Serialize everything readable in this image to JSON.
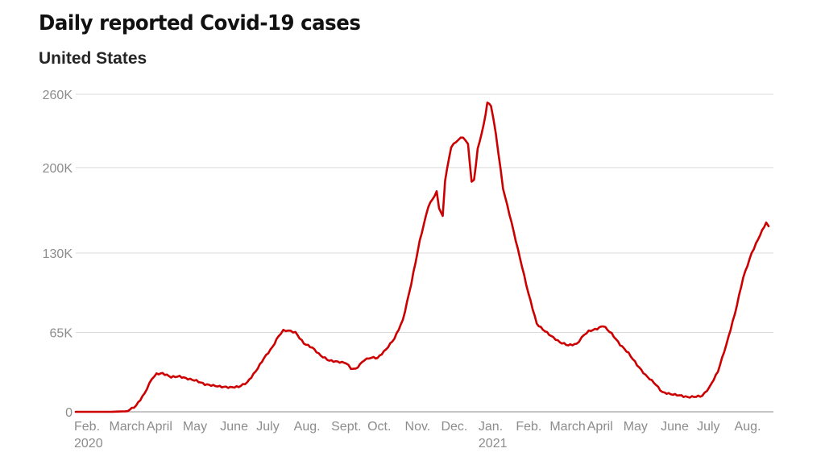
{
  "header": {
    "title": "Daily reported Covid-19 cases",
    "subtitle": "United States"
  },
  "colors": {
    "series": "#cc0000",
    "grid": "#d9d9d9",
    "tick_text": "#8c8c8c",
    "baseline": "#8c8c8c"
  },
  "chart_data": {
    "type": "line",
    "title": "Daily reported Covid-19 cases",
    "subtitle": "United States",
    "xlabel": "",
    "ylabel": "",
    "xlim": [
      "2020-02-01",
      "2021-09-01"
    ],
    "ylim": [
      0,
      260000
    ],
    "grid": true,
    "legend": "none",
    "y_ticks": [
      {
        "value": 0,
        "label": "0"
      },
      {
        "value": 65000,
        "label": "65K"
      },
      {
        "value": 130000,
        "label": "130K"
      },
      {
        "value": 200000,
        "label": "200K"
      },
      {
        "value": 260000,
        "label": "260K"
      }
    ],
    "x_ticks": [
      {
        "date": "2020-02-01",
        "label": "Feb.",
        "year": "2020"
      },
      {
        "date": "2020-03-01",
        "label": "March"
      },
      {
        "date": "2020-04-01",
        "label": "April"
      },
      {
        "date": "2020-05-01",
        "label": "May"
      },
      {
        "date": "2020-06-01",
        "label": "June"
      },
      {
        "date": "2020-07-01",
        "label": "July"
      },
      {
        "date": "2020-08-01",
        "label": "Aug."
      },
      {
        "date": "2020-09-01",
        "label": "Sept."
      },
      {
        "date": "2020-10-01",
        "label": "Oct."
      },
      {
        "date": "2020-11-01",
        "label": "Nov."
      },
      {
        "date": "2020-12-01",
        "label": "Dec."
      },
      {
        "date": "2021-01-01",
        "label": "Jan.",
        "year": "2021"
      },
      {
        "date": "2021-02-01",
        "label": "Feb."
      },
      {
        "date": "2021-03-01",
        "label": "March"
      },
      {
        "date": "2021-04-01",
        "label": "April"
      },
      {
        "date": "2021-05-01",
        "label": "May"
      },
      {
        "date": "2021-06-01",
        "label": "June"
      },
      {
        "date": "2021-07-01",
        "label": "July"
      },
      {
        "date": "2021-08-01",
        "label": "Aug."
      }
    ],
    "series": [
      {
        "color": "#cc0000",
        "points": [
          [
            "2020-02-01",
            0
          ],
          [
            "2020-03-01",
            0
          ],
          [
            "2020-03-15",
            500
          ],
          [
            "2020-03-22",
            5000
          ],
          [
            "2020-03-29",
            15000
          ],
          [
            "2020-04-04",
            27000
          ],
          [
            "2020-04-08",
            31000
          ],
          [
            "2020-04-13",
            31500
          ],
          [
            "2020-04-20",
            28500
          ],
          [
            "2020-04-27",
            29000
          ],
          [
            "2020-05-04",
            27000
          ],
          [
            "2020-05-11",
            25500
          ],
          [
            "2020-05-18",
            22500
          ],
          [
            "2020-05-25",
            21500
          ],
          [
            "2020-06-01",
            20500
          ],
          [
            "2020-06-08",
            20000
          ],
          [
            "2020-06-15",
            20500
          ],
          [
            "2020-06-22",
            24000
          ],
          [
            "2020-06-29",
            33000
          ],
          [
            "2020-07-06",
            44000
          ],
          [
            "2020-07-13",
            53000
          ],
          [
            "2020-07-18",
            62000
          ],
          [
            "2020-07-22",
            66500
          ],
          [
            "2020-07-26",
            66500
          ],
          [
            "2020-08-01",
            65000
          ],
          [
            "2020-08-08",
            56000
          ],
          [
            "2020-08-15",
            52500
          ],
          [
            "2020-08-22",
            46000
          ],
          [
            "2020-08-29",
            42000
          ],
          [
            "2020-09-05",
            41000
          ],
          [
            "2020-09-12",
            40000
          ],
          [
            "2020-09-16",
            35500
          ],
          [
            "2020-09-20",
            35000
          ],
          [
            "2020-09-27",
            42500
          ],
          [
            "2020-10-03",
            44500
          ],
          [
            "2020-10-08",
            44000
          ],
          [
            "2020-10-15",
            51000
          ],
          [
            "2020-10-22",
            60000
          ],
          [
            "2020-10-29",
            75000
          ],
          [
            "2020-11-05",
            105000
          ],
          [
            "2020-11-12",
            140000
          ],
          [
            "2020-11-19",
            168000
          ],
          [
            "2020-11-26",
            180000
          ],
          [
            "2020-11-28",
            167000
          ],
          [
            "2020-12-01",
            160000
          ],
          [
            "2020-12-03",
            190000
          ],
          [
            "2020-12-08",
            217000
          ],
          [
            "2020-12-14",
            223000
          ],
          [
            "2020-12-18",
            225000
          ],
          [
            "2020-12-22",
            219000
          ],
          [
            "2020-12-25",
            188000
          ],
          [
            "2020-12-27",
            190000
          ],
          [
            "2020-12-30",
            215000
          ],
          [
            "2021-01-04",
            235000
          ],
          [
            "2021-01-07",
            253000
          ],
          [
            "2021-01-10",
            251000
          ],
          [
            "2021-01-14",
            228000
          ],
          [
            "2021-01-20",
            183000
          ],
          [
            "2021-01-27",
            155000
          ],
          [
            "2021-02-03",
            126000
          ],
          [
            "2021-02-10",
            97000
          ],
          [
            "2021-02-17",
            72000
          ],
          [
            "2021-02-22",
            67500
          ],
          [
            "2021-03-01",
            62000
          ],
          [
            "2021-03-08",
            57000
          ],
          [
            "2021-03-15",
            54500
          ],
          [
            "2021-03-22",
            55500
          ],
          [
            "2021-03-28",
            63000
          ],
          [
            "2021-04-01",
            66000
          ],
          [
            "2021-04-08",
            68000
          ],
          [
            "2021-04-13",
            70500
          ],
          [
            "2021-04-20",
            64000
          ],
          [
            "2021-04-27",
            55000
          ],
          [
            "2021-05-04",
            48000
          ],
          [
            "2021-05-11",
            38500
          ],
          [
            "2021-05-18",
            30000
          ],
          [
            "2021-05-25",
            24000
          ],
          [
            "2021-06-01",
            16000
          ],
          [
            "2021-06-08",
            14500
          ],
          [
            "2021-06-15",
            13500
          ],
          [
            "2021-06-22",
            12000
          ],
          [
            "2021-06-29",
            12500
          ],
          [
            "2021-07-04",
            13000
          ],
          [
            "2021-07-10",
            20000
          ],
          [
            "2021-07-17",
            33000
          ],
          [
            "2021-07-24",
            55000
          ],
          [
            "2021-07-31",
            80000
          ],
          [
            "2021-08-07",
            110000
          ],
          [
            "2021-08-14",
            130000
          ],
          [
            "2021-08-21",
            145000
          ],
          [
            "2021-08-26",
            155000
          ],
          [
            "2021-08-28",
            152000
          ]
        ]
      }
    ]
  }
}
